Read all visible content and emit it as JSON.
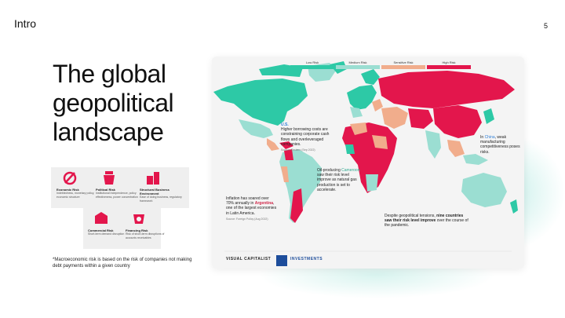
{
  "header": {
    "section": "Intro",
    "page_number": "5"
  },
  "title": {
    "line1": "The global",
    "line2": "geopolitical",
    "line3": "landscape"
  },
  "risk_types": [
    {
      "icon": "economic-risk-icon",
      "title": "Economic Risk",
      "desc": "Indebtedness, monetary policy, economic structure"
    },
    {
      "icon": "political-risk-icon",
      "title": "Political Risk",
      "desc": "Institutional independence, policy effectiveness, power concentration"
    },
    {
      "icon": "business-risk-icon",
      "title": "Structural Business Environment",
      "desc": "Ease of doing business, regulatory framework"
    },
    {
      "icon": "commercial-risk-icon",
      "title": "Commercial Risk",
      "desc": "Short-term demand disruption"
    },
    {
      "icon": "financing-risk-icon",
      "title": "Financing Risk",
      "desc": "Risk of short-term disruptions of accounts receivables"
    }
  ],
  "footnote": "*Macroeconomic risk is based on the risk of companies not making debt payments within a given country",
  "map": {
    "legend": [
      {
        "label": "Low Risk",
        "color": "#2dc9a6"
      },
      {
        "label": "Medium Risk",
        "color": "#9bded2"
      },
      {
        "label": "Sensitive Risk",
        "color": "#f1ad8c"
      },
      {
        "label": "High Risk",
        "color": "#e3164c"
      }
    ],
    "annotations": {
      "us_head": "U.S.",
      "us_text": "Higher borrowing costs are constraining corporate cash flows and overleveraged companies.",
      "us_src": "Source: Reuters (Sep 2022)",
      "china_pre": "In",
      "china_hl": "China",
      "china_text": ", weak manufacturing competitiveness poses risks.",
      "oil_pre": "Oil-producing",
      "oil_hl": "Cameroon",
      "oil_text": "saw their risk level improve as natural gas production is set to accelerate.",
      "arg_pre": "Inflation has soared over 70% annually in",
      "arg_hl": "Argentina",
      "arg_text": ", one of the largest economies in Latin America.",
      "arg_src": "Source: Foreign Policy (Aug 2022)",
      "nine_pre": "Despite geopolitical tensions,",
      "nine_hl": "nine countries saw their risk level improve",
      "nine_text": "over the course of the pandemic."
    },
    "brand_vc": "VISUAL CAPITALIST",
    "brand_partner": "INVESTMENTS"
  }
}
